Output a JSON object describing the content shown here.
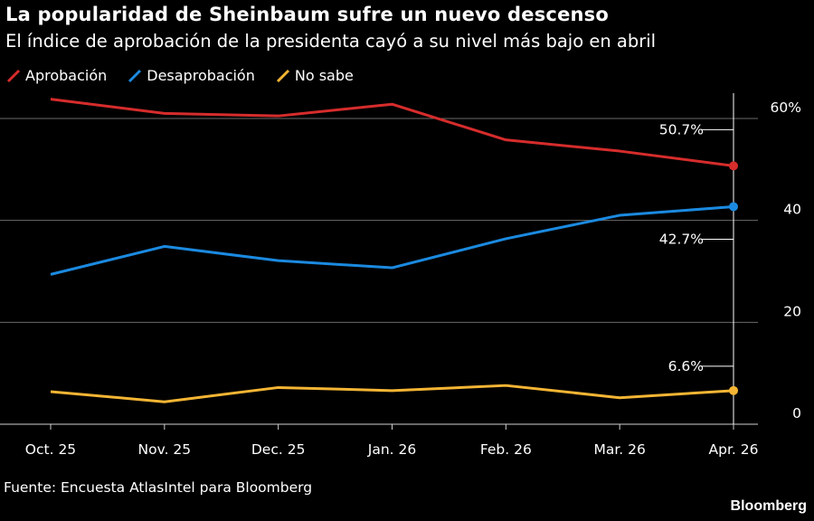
{
  "header": {
    "title": "La popularidad de Sheinbaum sufre un nuevo descenso",
    "subtitle": "El índice de aprobación de la presidenta cayó a su nivel más bajo en abril"
  },
  "footer": {
    "source": "Fuente: Encuesta AtlasIntel para Bloomberg",
    "brand": "Bloomberg"
  },
  "chart_data": {
    "type": "line",
    "categories": [
      "Oct. 25",
      "Nov. 25",
      "Dec. 25",
      "Jan. 26",
      "Feb. 26",
      "Mar. 26",
      "Apr. 26"
    ],
    "series": [
      {
        "name": "Aprobación",
        "color": "#d62c2c",
        "values": [
          63.8,
          61.0,
          60.5,
          62.8,
          55.8,
          53.6,
          50.7
        ],
        "end_label": "50.7%"
      },
      {
        "name": "Desaprobación",
        "color": "#1b8ae0",
        "values": [
          29.4,
          34.9,
          32.1,
          30.7,
          36.4,
          41.0,
          42.7
        ],
        "end_label": "42.7%"
      },
      {
        "name": "No sabe",
        "color": "#f5b534",
        "values": [
          6.4,
          4.4,
          7.2,
          6.6,
          7.6,
          5.2,
          6.6
        ],
        "end_label": "6.6%"
      }
    ],
    "y_ticks": [
      {
        "value": 0,
        "label": "0"
      },
      {
        "value": 20,
        "label": "20"
      },
      {
        "value": 40,
        "label": "40"
      },
      {
        "value": 60,
        "label": "60%"
      }
    ],
    "ylim": [
      0,
      63
    ],
    "grid": true,
    "legend_position": "top-left"
  }
}
